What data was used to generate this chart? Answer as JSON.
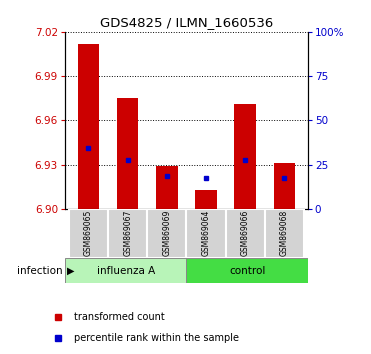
{
  "title": "GDS4825 / ILMN_1660536",
  "samples": [
    "GSM869065",
    "GSM869067",
    "GSM869069",
    "GSM869064",
    "GSM869066",
    "GSM869068"
  ],
  "group_labels": [
    "influenza A",
    "control"
  ],
  "factor_label": "infection",
  "ylim": [
    6.9,
    7.02
  ],
  "yticks": [
    6.9,
    6.93,
    6.96,
    6.99,
    7.02
  ],
  "y2ticks": [
    0,
    25,
    50,
    75,
    100
  ],
  "y2tick_labels": [
    "0",
    "25",
    "50",
    "75",
    "100%"
  ],
  "bar_bottoms": [
    6.9,
    6.9,
    6.9,
    6.9,
    6.9,
    6.9
  ],
  "bar_tops": [
    7.012,
    6.975,
    6.929,
    6.913,
    6.971,
    6.931
  ],
  "percentile_values": [
    6.941,
    6.933,
    6.922,
    6.921,
    6.933,
    6.921
  ],
  "bar_color": "#cc0000",
  "percentile_color": "#0000cc",
  "influenza_color": "#b8f4b8",
  "control_color": "#44dd44",
  "tick_color": "#cc0000",
  "right_tick_color": "#0000cc",
  "legend_items": [
    {
      "color": "#cc0000",
      "label": "transformed count"
    },
    {
      "color": "#0000cc",
      "label": "percentile rank within the sample"
    }
  ]
}
